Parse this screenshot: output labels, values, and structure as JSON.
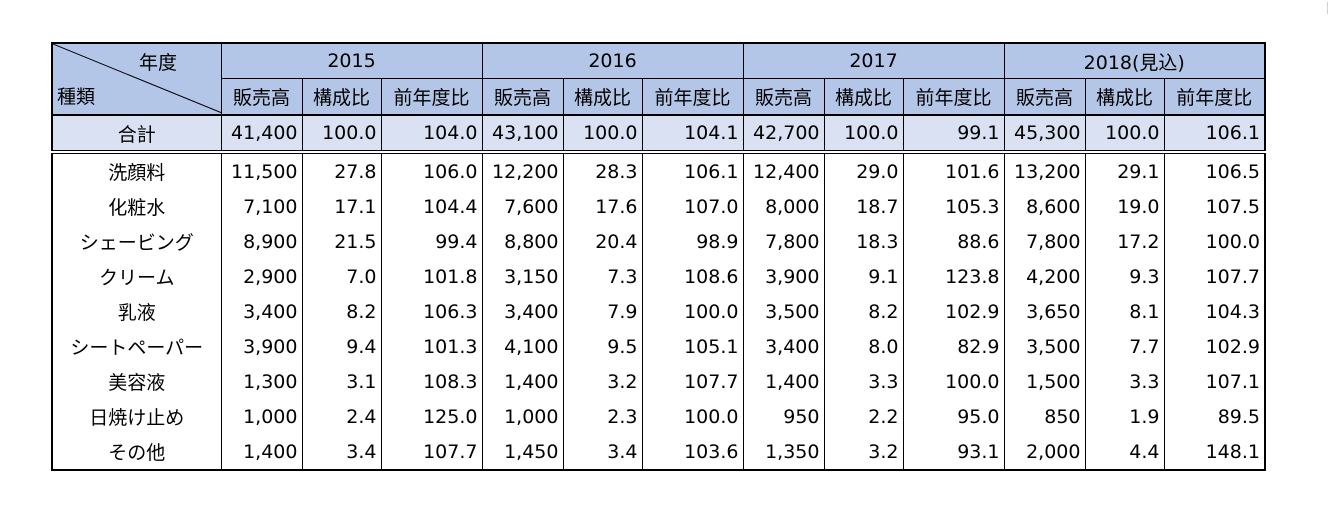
{
  "corner": {
    "top_label": "年度",
    "bottom_label": "種類"
  },
  "years": [
    "2015",
    "2016",
    "2017",
    "2018(見込)"
  ],
  "metric_headers": [
    "販売高",
    "構成比",
    "前年度比"
  ],
  "total": {
    "label": "合計",
    "values": [
      "41,400",
      "100.0",
      "104.0",
      "43,100",
      "100.0",
      "104.1",
      "42,700",
      "100.0",
      "99.1",
      "45,300",
      "100.0",
      "106.1"
    ]
  },
  "rows": [
    {
      "label": "洗顔料",
      "values": [
        "11,500",
        "27.8",
        "106.0",
        "12,200",
        "28.3",
        "106.1",
        "12,400",
        "29.0",
        "101.6",
        "13,200",
        "29.1",
        "106.5"
      ]
    },
    {
      "label": "化粧水",
      "values": [
        "7,100",
        "17.1",
        "104.4",
        "7,600",
        "17.6",
        "107.0",
        "8,000",
        "18.7",
        "105.3",
        "8,600",
        "19.0",
        "107.5"
      ]
    },
    {
      "label": "シェービング",
      "values": [
        "8,900",
        "21.5",
        "99.4",
        "8,800",
        "20.4",
        "98.9",
        "7,800",
        "18.3",
        "88.6",
        "7,800",
        "17.2",
        "100.0"
      ]
    },
    {
      "label": "クリーム",
      "values": [
        "2,900",
        "7.0",
        "101.8",
        "3,150",
        "7.3",
        "108.6",
        "3,900",
        "9.1",
        "123.8",
        "4,200",
        "9.3",
        "107.7"
      ]
    },
    {
      "label": "乳液",
      "values": [
        "3,400",
        "8.2",
        "106.3",
        "3,400",
        "7.9",
        "100.0",
        "3,500",
        "8.2",
        "102.9",
        "3,650",
        "8.1",
        "104.3"
      ]
    },
    {
      "label": "シートペーパー",
      "values": [
        "3,900",
        "9.4",
        "101.3",
        "4,100",
        "9.5",
        "105.1",
        "3,400",
        "8.0",
        "82.9",
        "3,500",
        "7.7",
        "102.9"
      ]
    },
    {
      "label": "美容液",
      "values": [
        "1,300",
        "3.1",
        "108.3",
        "1,400",
        "3.2",
        "107.7",
        "1,400",
        "3.3",
        "100.0",
        "1,500",
        "3.3",
        "107.1"
      ]
    },
    {
      "label": "日焼け止め",
      "values": [
        "1,000",
        "2.4",
        "125.0",
        "1,000",
        "2.3",
        "100.0",
        "950",
        "2.2",
        "95.0",
        "850",
        "1.9",
        "89.5"
      ]
    },
    {
      "label": "その他",
      "values": [
        "1,400",
        "3.4",
        "107.7",
        "1,450",
        "3.4",
        "103.6",
        "1,350",
        "3.2",
        "93.1",
        "2,000",
        "4.4",
        "148.1"
      ]
    }
  ],
  "colors": {
    "header_fill": "#b4c6e7",
    "total_fill": "#d9e1f2",
    "border": "#000000"
  }
}
